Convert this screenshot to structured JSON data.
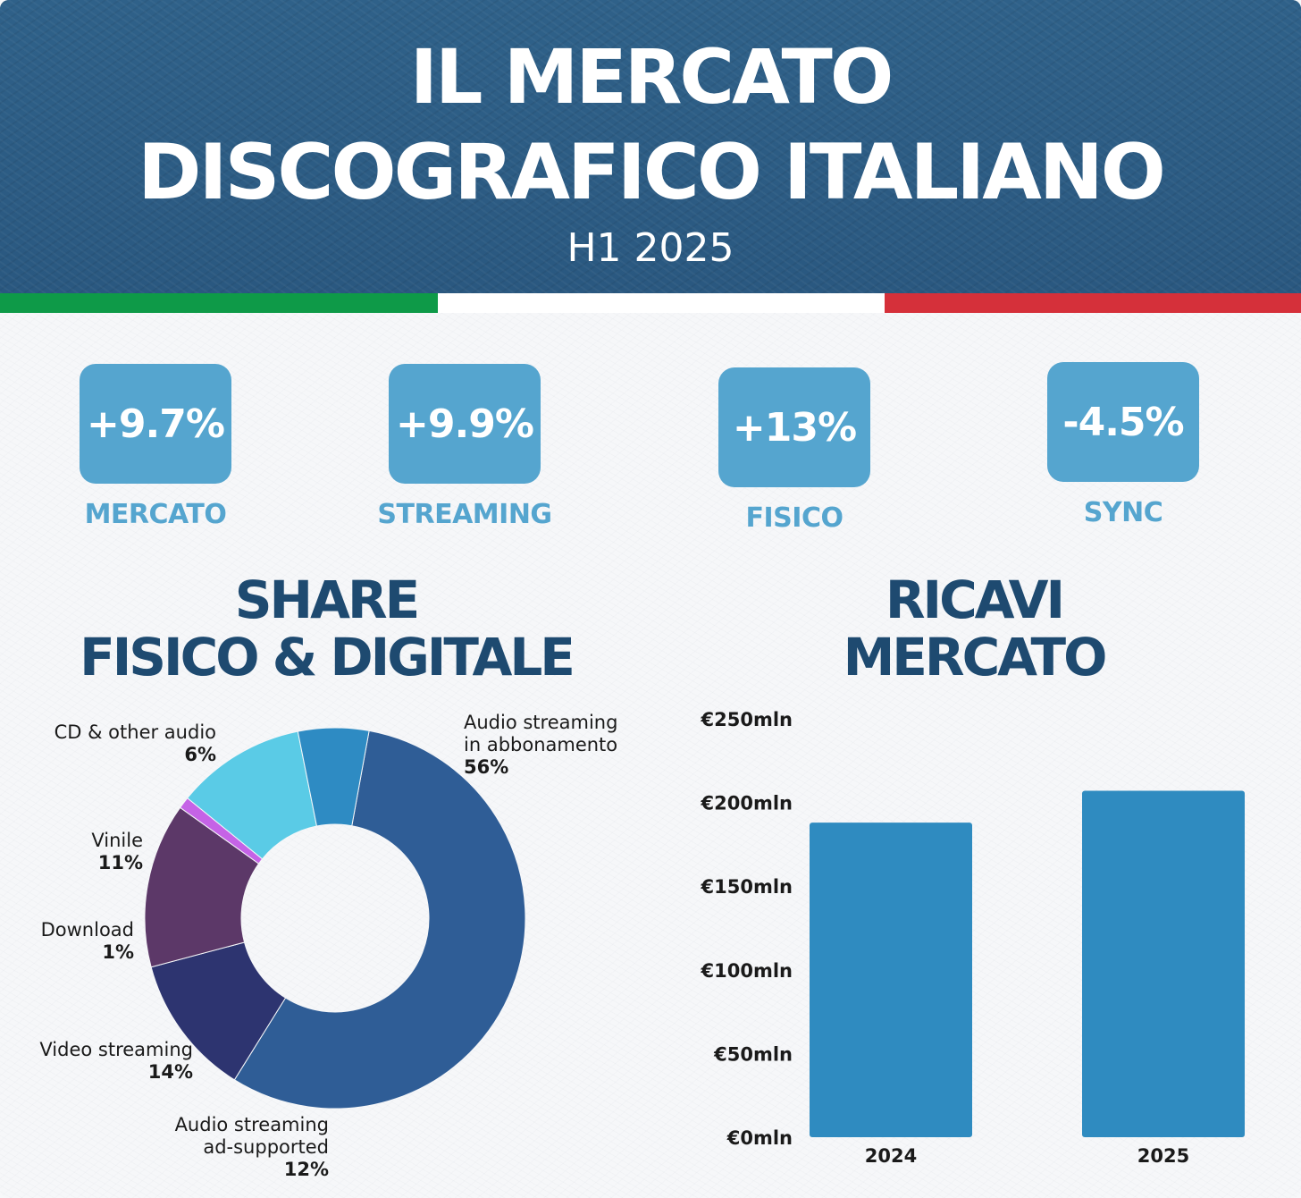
{
  "header": {
    "title_line1": "IL MERCATO",
    "title_line2": "DISCOGRAFICO ITALIANO",
    "subtitle": "H1 2025"
  },
  "flag_colors": [
    "#0e9a48",
    "#ffffff",
    "#d5303a"
  ],
  "kpis": [
    {
      "value": "+9.7%",
      "label": "MERCATO"
    },
    {
      "value": "+9.9%",
      "label": "STREAMING"
    },
    {
      "value": "+13%",
      "label": "FISICO"
    },
    {
      "value": "-4.5%",
      "label": "SYNC"
    }
  ],
  "sections": {
    "share_title_line1": "SHARE",
    "share_title_line2": "FISICO & DIGITALE",
    "revenue_title_line1": "RICAVI",
    "revenue_title_line2": "MERCATO"
  },
  "chart_data": [
    {
      "type": "pie",
      "title": "SHARE FISICO & DIGITALE",
      "donut": true,
      "slices": [
        {
          "name_lines": [
            "Audio streaming",
            "in abbonamento"
          ],
          "pct_label": "56%",
          "value": 56,
          "color": "#2f5d96"
        },
        {
          "name_lines": [
            "Audio streaming",
            "ad-supported"
          ],
          "pct_label": "12%",
          "value": 12,
          "color": "#2d3470"
        },
        {
          "name_lines": [
            "Video streaming"
          ],
          "pct_label": "14%",
          "value": 14,
          "color": "#5c3868"
        },
        {
          "name_lines": [
            "Download"
          ],
          "pct_label": "1%",
          "value": 1,
          "color": "#c563e6"
        },
        {
          "name_lines": [
            "Vinile"
          ],
          "pct_label": "11%",
          "value": 11,
          "color": "#5acbe6"
        },
        {
          "name_lines": [
            "CD & other audio"
          ],
          "pct_label": "6%",
          "value": 6,
          "color": "#2e8bc3"
        }
      ]
    },
    {
      "type": "bar",
      "title": "RICAVI MERCATO",
      "categories": [
        "2024",
        "2025"
      ],
      "values": [
        188,
        207
      ],
      "ylim": [
        0,
        250
      ],
      "yticks": [
        0,
        50,
        100,
        150,
        200,
        250
      ],
      "ytick_labels": [
        "€0mln",
        "€50mln",
        "€100mln",
        "€150mln",
        "€200mln",
        "€250mln"
      ],
      "bar_color": "#2f8bc0",
      "grid": false
    }
  ]
}
